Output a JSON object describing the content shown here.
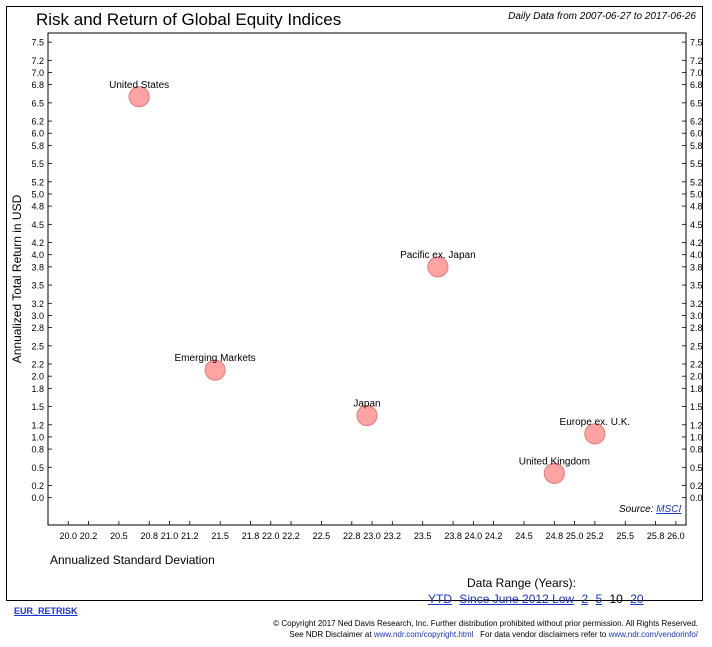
{
  "header": {
    "title": "Risk and Return of Global Equity Indices",
    "date_range": "Daily Data from 2007-06-27 to 2017-06-26"
  },
  "source": {
    "label": "Source:",
    "name": "MSCI"
  },
  "data_range": {
    "label": "Data Range (Years):",
    "options": [
      "YTD",
      "Since June 2012 Low",
      "2",
      "5",
      "10",
      "20"
    ],
    "selected": "10"
  },
  "footer": {
    "report_id": "EUR_RETRISK",
    "copyright": "© Copyright 2017 Ned Davis Research, Inc. Further distribution prohibited without prior permission. All Rights Reserved.",
    "disclaimer_prefix": "See NDR Disclaimer at",
    "disclaimer_link": "www.ndr.com/copyright.html",
    "vendor_prefix": "For data vendor disclaimers refer to",
    "vendor_link": "www.ndr.com/vendorinfo/"
  },
  "colors": {
    "bubble_fill": "#ff9a9a",
    "bubble_stroke": "#e77575",
    "link": "#1a33cc"
  },
  "chart_data": {
    "type": "scatter",
    "title": "Risk and Return of Global Equity Indices",
    "xlabel": "Annualized Standard Deviation",
    "ylabel": "Annualized Total Return in USD",
    "xlim": [
      19.8,
      26.1
    ],
    "ylim": [
      -0.45,
      7.65
    ],
    "x_ticks": [
      "20.0",
      "20.2",
      "20.5",
      "20.8",
      "21.0",
      "21.2",
      "21.5",
      "21.8",
      "22.0",
      "22.2",
      "22.5",
      "22.8",
      "23.0",
      "23.2",
      "23.5",
      "23.8",
      "24.0",
      "24.2",
      "24.5",
      "24.8",
      "25.0",
      "25.2",
      "25.5",
      "25.8",
      "26.0"
    ],
    "y_ticks": [
      "0.0",
      "0.2",
      "0.5",
      "0.8",
      "1.0",
      "1.2",
      "1.5",
      "1.8",
      "2.0",
      "2.2",
      "2.5",
      "2.8",
      "3.0",
      "3.2",
      "3.5",
      "3.8",
      "4.0",
      "4.2",
      "4.5",
      "4.8",
      "5.0",
      "5.2",
      "5.5",
      "5.8",
      "6.0",
      "6.2",
      "6.5",
      "6.8",
      "7.0",
      "7.2",
      "7.5"
    ],
    "grid": false,
    "points": [
      {
        "name": "United States",
        "x": 20.7,
        "y": 6.6
      },
      {
        "name": "Emerging Markets",
        "x": 21.45,
        "y": 2.1
      },
      {
        "name": "Japan",
        "x": 22.95,
        "y": 1.35
      },
      {
        "name": "Pacific ex. Japan",
        "x": 23.65,
        "y": 3.8
      },
      {
        "name": "United Kingdom",
        "x": 24.8,
        "y": 0.4
      },
      {
        "name": "Europe ex. U.K.",
        "x": 25.2,
        "y": 1.05
      }
    ]
  }
}
